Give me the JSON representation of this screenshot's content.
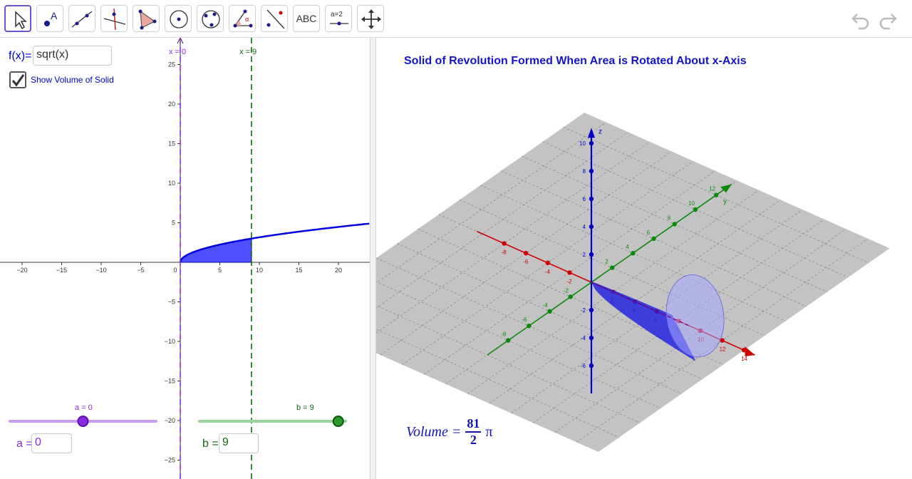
{
  "toolbar": {
    "tools": [
      {
        "name": "move-tool",
        "label": ""
      },
      {
        "name": "point-tool",
        "label": "A"
      },
      {
        "name": "line-tool",
        "label": ""
      },
      {
        "name": "perpendicular-tool",
        "label": ""
      },
      {
        "name": "polygon-tool",
        "label": ""
      },
      {
        "name": "circle-center-tool",
        "label": ""
      },
      {
        "name": "conic-tool",
        "label": ""
      },
      {
        "name": "angle-tool",
        "label": "α"
      },
      {
        "name": "reflect-tool",
        "label": ""
      },
      {
        "name": "text-tool",
        "label": "ABC"
      },
      {
        "name": "slider-tool",
        "label": "a=2"
      },
      {
        "name": "move-view-tool",
        "label": ""
      }
    ]
  },
  "left": {
    "function_label": "f(x)=",
    "function_value": "sqrt(x)",
    "checkbox_label": "Show Volume of Solid",
    "checkbox_checked": true,
    "line_label_a": "x = 0",
    "line_label_b": "x = 9",
    "x_ticks": [
      "−20",
      "−15",
      "−10",
      "−5",
      "0",
      "5",
      "10",
      "15",
      "20"
    ],
    "y_ticks": [
      "25",
      "20",
      "15",
      "10",
      "5",
      "−5",
      "−10",
      "−15",
      "−20",
      "−25"
    ],
    "slider_a": {
      "label": "a = 0",
      "value": 0,
      "min": -10,
      "max": 10,
      "color": "#8a2be2"
    },
    "slider_b": {
      "label": "b = 9",
      "value": 9,
      "min": -10,
      "max": 10,
      "color": "#228b22"
    },
    "input_a_label": "a =",
    "input_a_value": "0",
    "input_b_label": "b =",
    "input_b_value": "9"
  },
  "right": {
    "title": "Solid of Revolution Formed When Area is Rotated About x-Axis",
    "volume_label": "Volume =",
    "volume_numerator": "81",
    "volume_denominator": "2",
    "volume_pi": "π",
    "axis_z_label": "z",
    "axis_y_label": "y",
    "z_ticks": [
      "10",
      "8",
      "6",
      "4",
      "2",
      "-2",
      "-4",
      "-6"
    ],
    "x_ticks": [
      "-8",
      "-6",
      "-4",
      "-2",
      "2",
      "4",
      "6",
      "8",
      "10",
      "12",
      "14"
    ],
    "y_ticks": [
      "-8",
      "-6",
      "-4",
      "-2",
      "2",
      "4",
      "6",
      "8",
      "10",
      "12"
    ]
  },
  "colors": {
    "accent": "#6557d2",
    "function_blue": "#0000e0",
    "x_axis_red": "#d00000",
    "y_axis_green": "#0a8a0a",
    "z_axis_blue": "#0000c8"
  }
}
